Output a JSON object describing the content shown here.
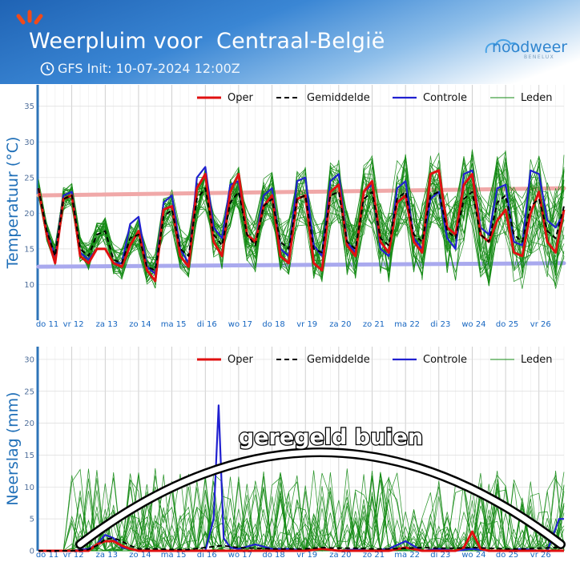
{
  "header": {
    "title": "Weerpluim voor  Centraal-België",
    "subtitle": "GFS Init: 10-07-2024 12:00Z",
    "logo_text": "noodweer",
    "logo_sub": "BENELUX",
    "brand_color": "#2f85cf"
  },
  "annotation": {
    "text": "geregeld buien"
  },
  "colors": {
    "oper": "#e01010",
    "mean": "#000000",
    "control": "#2020d0",
    "members": "#138a13",
    "normal_max": "#f0a8a8",
    "normal_min": "#a9a9ee",
    "axis_spine": "#2f74b8"
  },
  "chart_data": [
    {
      "type": "line",
      "ylabel": "Temperatuur (°C)",
      "ylim": [
        5,
        38
      ],
      "yticks": [
        10,
        15,
        20,
        25,
        30,
        35
      ],
      "xlim": [
        0,
        15.75
      ],
      "x_tick_labels": [
        "do 11",
        "vr 12",
        "za 13",
        "zo 14",
        "ma 15",
        "di 16",
        "wo 17",
        "do 18",
        "vr 19",
        "za 20",
        "zo 21",
        "ma 22",
        "di 23",
        "wo 24",
        "do 25",
        "vr 26"
      ],
      "legend": [
        "Oper",
        "Gemiddelde",
        "Controle",
        "Leden"
      ],
      "legend_position": "top-right",
      "normal_max": [
        [
          0,
          22.5
        ],
        [
          15.75,
          23.5
        ]
      ],
      "normal_min": [
        [
          0,
          12.5
        ],
        [
          15.75,
          13.0
        ]
      ],
      "series": [
        {
          "name": "Oper",
          "x": [
            0,
            0.25,
            0.5,
            0.75,
            1,
            1.25,
            1.5,
            1.75,
            2,
            2.25,
            2.5,
            2.75,
            3,
            3.25,
            3.5,
            3.75,
            4,
            4.25,
            4.5,
            4.75,
            5,
            5.25,
            5.5,
            5.75,
            6,
            6.25,
            6.5,
            6.75,
            7,
            7.25,
            7.5,
            7.75,
            8,
            8.25,
            8.5,
            8.75,
            9,
            9.25,
            9.5,
            9.75,
            10,
            10.25,
            10.5,
            10.75,
            11,
            11.25,
            11.5,
            11.75,
            12,
            12.25,
            12.5,
            12.75,
            13,
            13.25,
            13.5,
            13.75,
            14,
            14.25,
            14.5,
            14.75,
            15,
            15.25,
            15.5,
            15.75
          ],
          "y": [
            23.5,
            17,
            13,
            22,
            22.5,
            14,
            13,
            15,
            15,
            13,
            12.5,
            15.5,
            17.5,
            12,
            10.5,
            20.5,
            21,
            14,
            12.5,
            23.5,
            25.5,
            16,
            14,
            23,
            25.5,
            17,
            16,
            21,
            22.5,
            14,
            13,
            22,
            22.5,
            13,
            12,
            23,
            24,
            15.5,
            14,
            23,
            24.5,
            16,
            14.5,
            21.5,
            22.5,
            16,
            14.5,
            25.5,
            26,
            18,
            17,
            24,
            25.5,
            17,
            16,
            19,
            20.5,
            14.5,
            14,
            20,
            23,
            16,
            14.5,
            20.5
          ]
        },
        {
          "name": "Gemiddelde",
          "x": [
            0,
            0.25,
            0.5,
            0.75,
            1,
            1.25,
            1.5,
            1.75,
            2,
            2.25,
            2.5,
            2.75,
            3,
            3.25,
            3.5,
            3.75,
            4,
            4.25,
            4.5,
            4.75,
            5,
            5.25,
            5.5,
            5.75,
            6,
            6.25,
            6.5,
            6.75,
            7,
            7.25,
            7.5,
            7.75,
            8,
            8.25,
            8.5,
            8.75,
            9,
            9.25,
            9.5,
            9.75,
            10,
            10.25,
            10.5,
            10.75,
            11,
            11.25,
            11.5,
            11.75,
            12,
            12.25,
            12.5,
            12.75,
            13,
            13.25,
            13.5,
            13.75,
            14,
            14.25,
            14.5,
            14.75,
            15,
            15.25,
            15.5,
            15.75
          ],
          "y": [
            23.5,
            17.5,
            14,
            22,
            22.5,
            15,
            14,
            17,
            17.5,
            13.5,
            13,
            16.5,
            17,
            12.5,
            12,
            19.5,
            20.5,
            15,
            14,
            22,
            23.5,
            17,
            15.5,
            21.5,
            23,
            17,
            15.5,
            21,
            22,
            16,
            15,
            22,
            22.5,
            15,
            14.5,
            22.5,
            23,
            16,
            15,
            22,
            23,
            16.5,
            15.5,
            22,
            23,
            17,
            16,
            22.5,
            23,
            17.5,
            16.5,
            22,
            23,
            17,
            16,
            21.5,
            22.5,
            17,
            16,
            21,
            22,
            17.5,
            16.5,
            21
          ]
        },
        {
          "name": "Controle",
          "x": [
            0,
            0.25,
            0.5,
            0.75,
            1,
            1.25,
            1.5,
            1.75,
            2,
            2.25,
            2.5,
            2.75,
            3,
            3.25,
            3.5,
            3.75,
            4,
            4.25,
            4.5,
            4.75,
            5,
            5.25,
            5.5,
            5.75,
            6,
            6.25,
            6.5,
            6.75,
            7,
            7.25,
            7.5,
            7.75,
            8,
            8.25,
            8.5,
            8.75,
            9,
            9.25,
            9.5,
            9.75,
            10,
            10.25,
            10.5,
            10.75,
            11,
            11.25,
            11.5,
            11.75,
            12,
            12.25,
            12.5,
            12.75,
            13,
            13.25,
            13.5,
            13.75,
            14,
            14.25,
            14.5,
            14.75,
            15,
            15.25,
            15.5,
            15.75
          ],
          "y": [
            23.5,
            17.5,
            14,
            22.5,
            23,
            14.5,
            13.5,
            15,
            15,
            13,
            13,
            18.5,
            19.5,
            12.5,
            11.5,
            21.5,
            22.5,
            15,
            13,
            25,
            26.5,
            18,
            16.5,
            24,
            24.5,
            17,
            16,
            22.5,
            23.5,
            15,
            14,
            24.5,
            25,
            15.5,
            14,
            24.5,
            25.5,
            16,
            14.5,
            23,
            24,
            15,
            14,
            23.5,
            24.5,
            16.5,
            15,
            22,
            23,
            16.5,
            15,
            25.5,
            26,
            18,
            17,
            23.5,
            24,
            16,
            15.5,
            26,
            25.5,
            19,
            18,
            20
          ]
        }
      ]
    },
    {
      "type": "line",
      "ylabel": "Neerslag (mm)",
      "ylim": [
        0,
        32
      ],
      "yticks": [
        0,
        5,
        10,
        15,
        20,
        25,
        30
      ],
      "xlim": [
        0,
        15.75
      ],
      "x_tick_labels": [
        "do 11",
        "vr 12",
        "za 13",
        "zo 14",
        "ma 15",
        "di 16",
        "wo 17",
        "do 18",
        "vr 19",
        "za 20",
        "zo 21",
        "ma 22",
        "di 23",
        "wo 24",
        "do 25",
        "vr 26"
      ],
      "legend": [
        "Oper",
        "Gemiddelde",
        "Controle",
        "Leden"
      ],
      "legend_position": "top-right",
      "series": [
        {
          "name": "Oper",
          "x": [
            0,
            1,
            1.5,
            1.75,
            2,
            2.25,
            2.5,
            2.75,
            3,
            3.5,
            4,
            4.5,
            5,
            5.5,
            6,
            6.5,
            7,
            7.5,
            8,
            8.5,
            9,
            9.5,
            10,
            10.5,
            11,
            11.5,
            12,
            12.5,
            12.75,
            13,
            13.25,
            13.5,
            14,
            14.5,
            15,
            15.25,
            15.5,
            15.75
          ],
          "y": [
            0,
            0,
            0,
            1,
            1.5,
            1.5,
            0.8,
            0.3,
            0,
            0,
            0,
            0,
            0,
            0,
            0,
            0,
            0,
            0,
            0,
            0.3,
            0,
            0,
            0,
            0,
            0.5,
            0,
            0,
            0,
            0.5,
            3,
            0.3,
            0,
            0,
            0,
            0,
            0,
            0,
            0
          ]
        },
        {
          "name": "Gemiddelde",
          "x": [
            0,
            1,
            1.5,
            1.75,
            2,
            2.25,
            2.5,
            2.75,
            3,
            3.5,
            4,
            4.5,
            5,
            5.5,
            6,
            6.5,
            7,
            7.5,
            8,
            8.5,
            9,
            9.5,
            10,
            10.5,
            11,
            11.5,
            12,
            12.5,
            13,
            13.5,
            14,
            14.5,
            15,
            15.5,
            15.75
          ],
          "y": [
            0,
            0,
            0.2,
            0.8,
            1.8,
            2,
            1.5,
            0.8,
            0.3,
            0.3,
            0.2,
            0.2,
            0.5,
            0.8,
            0.5,
            0.4,
            0.3,
            0.3,
            0.3,
            0.5,
            0.4,
            0.4,
            0.3,
            0.3,
            0.4,
            0.5,
            0.4,
            0.4,
            0.5,
            0.4,
            0.3,
            0.3,
            0.4,
            0.5,
            0.5
          ]
        },
        {
          "name": "Controle",
          "x": [
            0,
            1,
            1.5,
            1.75,
            2,
            2.25,
            2.5,
            2.75,
            3,
            3.5,
            4,
            4.5,
            5,
            5.25,
            5.4,
            5.55,
            5.75,
            6,
            6.5,
            7,
            7.5,
            8,
            8.5,
            9,
            9.5,
            10,
            10.5,
            11,
            11.5,
            12,
            12.5,
            13,
            13.5,
            14,
            14.5,
            15,
            15.25,
            15.5,
            15.6,
            15.75
          ],
          "y": [
            0,
            0,
            0.3,
            1,
            2.5,
            2,
            0.5,
            0.3,
            0,
            0,
            0,
            0,
            0,
            5,
            22.8,
            2,
            0.5,
            0.3,
            1,
            0.3,
            0.3,
            0,
            0.3,
            0,
            0.2,
            0,
            0.3,
            1.5,
            0,
            0.3,
            0,
            0.3,
            0,
            0,
            0.3,
            0,
            0,
            3.5,
            5,
            5
          ]
        }
      ]
    }
  ]
}
